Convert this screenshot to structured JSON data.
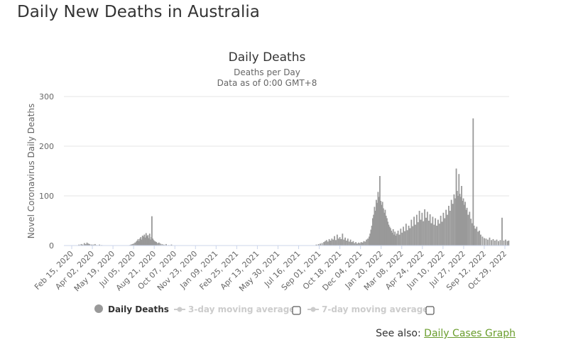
{
  "page": {
    "heading": "Daily New Deaths in Australia",
    "see_also_prefix": "See also:",
    "see_also_link": "Daily Cases Graph"
  },
  "colors": {
    "bar": "#999999",
    "grid": "#e6e6e6",
    "axis": "#ccd6eb",
    "link": "#6a9d2d"
  },
  "chart_data": {
    "type": "bar",
    "title": "Daily Deaths",
    "subtitle_lines": [
      "Deaths per Day",
      "Data as of 0:00 GMT+8"
    ],
    "ylabel": "Novel Coronavirus Daily Deaths",
    "xlabel": "",
    "ylim": [
      0,
      300
    ],
    "y_ticks": [
      0,
      100,
      200,
      300
    ],
    "grid": true,
    "x_start": "2020-02-15",
    "x_end": "2022-11-13",
    "x_ticks": [
      "Feb 15, 2020",
      "Apr 02, 2020",
      "May 19, 2020",
      "Jul 05, 2020",
      "Aug 21, 2020",
      "Oct 07, 2020",
      "Nov 23, 2020",
      "Jan 09, 2021",
      "Feb 25, 2021",
      "Apr 13, 2021",
      "May 30, 2021",
      "Jul 16, 2021",
      "Sep 01, 2021",
      "Oct 18, 2021",
      "Dec 04, 2021",
      "Jan 20, 2022",
      "Mar 08, 2022",
      "Apr 24, 2022",
      "Jun 10, 2022",
      "Jul 27, 2022",
      "Sep 12, 2022",
      "Oct 29, 2022"
    ],
    "legend_position": "bottom",
    "series": [
      {
        "name": "Daily Deaths",
        "points": [
          [
            "2020-03-20",
            2
          ],
          [
            "2020-03-25",
            3
          ],
          [
            "2020-03-28",
            2
          ],
          [
            "2020-04-01",
            5
          ],
          [
            "2020-04-04",
            3
          ],
          [
            "2020-04-07",
            6
          ],
          [
            "2020-04-10",
            4
          ],
          [
            "2020-04-13",
            3
          ],
          [
            "2020-04-17",
            2
          ],
          [
            "2020-04-21",
            2
          ],
          [
            "2020-04-25",
            3
          ],
          [
            "2020-04-29",
            1
          ],
          [
            "2020-05-05",
            2
          ],
          [
            "2020-05-10",
            1
          ],
          [
            "2020-07-12",
            1
          ],
          [
            "2020-07-15",
            2
          ],
          [
            "2020-07-18",
            3
          ],
          [
            "2020-07-21",
            4
          ],
          [
            "2020-07-24",
            6
          ],
          [
            "2020-07-27",
            8
          ],
          [
            "2020-07-29",
            10
          ],
          [
            "2020-07-31",
            13
          ],
          [
            "2020-08-02",
            9
          ],
          [
            "2020-08-04",
            14
          ],
          [
            "2020-08-06",
            17
          ],
          [
            "2020-08-08",
            12
          ],
          [
            "2020-08-10",
            20
          ],
          [
            "2020-08-12",
            18
          ],
          [
            "2020-08-14",
            22
          ],
          [
            "2020-08-16",
            16
          ],
          [
            "2020-08-18",
            25
          ],
          [
            "2020-08-20",
            19
          ],
          [
            "2020-08-22",
            21
          ],
          [
            "2020-08-24",
            15
          ],
          [
            "2020-08-26",
            24
          ],
          [
            "2020-08-28",
            12
          ],
          [
            "2020-08-30",
            17
          ],
          [
            "2020-08-31",
            59
          ],
          [
            "2020-09-02",
            14
          ],
          [
            "2020-09-04",
            11
          ],
          [
            "2020-09-06",
            9
          ],
          [
            "2020-09-08",
            8
          ],
          [
            "2020-09-10",
            7
          ],
          [
            "2020-09-13",
            5
          ],
          [
            "2020-09-16",
            6
          ],
          [
            "2020-09-19",
            4
          ],
          [
            "2020-09-23",
            3
          ],
          [
            "2020-09-27",
            2
          ],
          [
            "2020-10-02",
            3
          ],
          [
            "2020-10-08",
            1
          ],
          [
            "2020-10-14",
            2
          ],
          [
            "2021-09-05",
            2
          ],
          [
            "2021-09-10",
            3
          ],
          [
            "2021-09-14",
            4
          ],
          [
            "2021-09-18",
            5
          ],
          [
            "2021-09-22",
            7
          ],
          [
            "2021-09-25",
            9
          ],
          [
            "2021-09-28",
            11
          ],
          [
            "2021-10-01",
            8
          ],
          [
            "2021-10-04",
            13
          ],
          [
            "2021-10-07",
            10
          ],
          [
            "2021-10-10",
            14
          ],
          [
            "2021-10-13",
            12
          ],
          [
            "2021-10-16",
            19
          ],
          [
            "2021-10-19",
            11
          ],
          [
            "2021-10-22",
            22
          ],
          [
            "2021-10-25",
            14
          ],
          [
            "2021-10-28",
            17
          ],
          [
            "2021-10-31",
            13
          ],
          [
            "2021-11-03",
            24
          ],
          [
            "2021-11-06",
            12
          ],
          [
            "2021-11-09",
            16
          ],
          [
            "2021-11-12",
            10
          ],
          [
            "2021-11-15",
            14
          ],
          [
            "2021-11-18",
            8
          ],
          [
            "2021-11-21",
            12
          ],
          [
            "2021-11-24",
            7
          ],
          [
            "2021-11-27",
            9
          ],
          [
            "2021-11-30",
            5
          ],
          [
            "2021-12-03",
            7
          ],
          [
            "2021-12-06",
            4
          ],
          [
            "2021-12-09",
            6
          ],
          [
            "2021-12-12",
            5
          ],
          [
            "2021-12-15",
            7
          ],
          [
            "2021-12-18",
            6
          ],
          [
            "2021-12-21",
            9
          ],
          [
            "2021-12-24",
            8
          ],
          [
            "2021-12-27",
            12
          ],
          [
            "2021-12-30",
            14
          ],
          [
            "2022-01-02",
            18
          ],
          [
            "2022-01-04",
            24
          ],
          [
            "2022-01-06",
            32
          ],
          [
            "2022-01-08",
            40
          ],
          [
            "2022-01-10",
            55
          ],
          [
            "2022-01-12",
            62
          ],
          [
            "2022-01-14",
            78
          ],
          [
            "2022-01-16",
            70
          ],
          [
            "2022-01-18",
            92
          ],
          [
            "2022-01-20",
            86
          ],
          [
            "2022-01-22",
            108
          ],
          [
            "2022-01-24",
            98
          ],
          [
            "2022-01-26",
            140
          ],
          [
            "2022-01-28",
            90
          ],
          [
            "2022-01-30",
            82
          ],
          [
            "2022-02-01",
            88
          ],
          [
            "2022-02-03",
            75
          ],
          [
            "2022-02-05",
            66
          ],
          [
            "2022-02-07",
            72
          ],
          [
            "2022-02-09",
            60
          ],
          [
            "2022-02-11",
            55
          ],
          [
            "2022-02-13",
            48
          ],
          [
            "2022-02-15",
            42
          ],
          [
            "2022-02-17",
            38
          ],
          [
            "2022-02-19",
            35
          ],
          [
            "2022-02-21",
            30
          ],
          [
            "2022-02-23",
            26
          ],
          [
            "2022-02-25",
            33
          ],
          [
            "2022-02-27",
            22
          ],
          [
            "2022-03-01",
            28
          ],
          [
            "2022-03-03",
            20
          ],
          [
            "2022-03-05",
            24
          ],
          [
            "2022-03-08",
            30
          ],
          [
            "2022-03-11",
            22
          ],
          [
            "2022-03-14",
            34
          ],
          [
            "2022-03-17",
            26
          ],
          [
            "2022-03-20",
            38
          ],
          [
            "2022-03-23",
            29
          ],
          [
            "2022-03-26",
            44
          ],
          [
            "2022-03-29",
            31
          ],
          [
            "2022-04-01",
            40
          ],
          [
            "2022-04-04",
            35
          ],
          [
            "2022-04-07",
            52
          ],
          [
            "2022-04-10",
            39
          ],
          [
            "2022-04-13",
            58
          ],
          [
            "2022-04-16",
            42
          ],
          [
            "2022-04-19",
            62
          ],
          [
            "2022-04-22",
            47
          ],
          [
            "2022-04-25",
            70
          ],
          [
            "2022-04-28",
            52
          ],
          [
            "2022-05-01",
            66
          ],
          [
            "2022-05-04",
            49
          ],
          [
            "2022-05-07",
            73
          ],
          [
            "2022-05-10",
            56
          ],
          [
            "2022-05-13",
            68
          ],
          [
            "2022-05-16",
            50
          ],
          [
            "2022-05-19",
            63
          ],
          [
            "2022-05-22",
            45
          ],
          [
            "2022-05-25",
            58
          ],
          [
            "2022-05-28",
            42
          ],
          [
            "2022-05-31",
            55
          ],
          [
            "2022-06-03",
            40
          ],
          [
            "2022-06-06",
            52
          ],
          [
            "2022-06-09",
            44
          ],
          [
            "2022-06-12",
            60
          ],
          [
            "2022-06-15",
            48
          ],
          [
            "2022-06-18",
            66
          ],
          [
            "2022-06-21",
            55
          ],
          [
            "2022-06-24",
            72
          ],
          [
            "2022-06-27",
            62
          ],
          [
            "2022-06-30",
            80
          ],
          [
            "2022-07-03",
            70
          ],
          [
            "2022-07-06",
            92
          ],
          [
            "2022-07-09",
            84
          ],
          [
            "2022-07-12",
            103
          ],
          [
            "2022-07-15",
            95
          ],
          [
            "2022-07-17",
            155
          ],
          [
            "2022-07-19",
            110
          ],
          [
            "2022-07-21",
            100
          ],
          [
            "2022-07-23",
            144
          ],
          [
            "2022-07-25",
            104
          ],
          [
            "2022-07-27",
            98
          ],
          [
            "2022-07-29",
            120
          ],
          [
            "2022-07-31",
            90
          ],
          [
            "2022-08-02",
            95
          ],
          [
            "2022-08-04",
            82
          ],
          [
            "2022-08-06",
            88
          ],
          [
            "2022-08-08",
            72
          ],
          [
            "2022-08-10",
            76
          ],
          [
            "2022-08-13",
            62
          ],
          [
            "2022-08-16",
            68
          ],
          [
            "2022-08-19",
            54
          ],
          [
            "2022-08-22",
            45
          ],
          [
            "2022-08-24",
            256
          ],
          [
            "2022-08-26",
            40
          ],
          [
            "2022-08-29",
            34
          ],
          [
            "2022-09-01",
            38
          ],
          [
            "2022-09-04",
            28
          ],
          [
            "2022-09-07",
            30
          ],
          [
            "2022-09-10",
            22
          ],
          [
            "2022-09-14",
            18
          ],
          [
            "2022-09-18",
            15
          ],
          [
            "2022-09-22",
            14
          ],
          [
            "2022-09-26",
            12
          ],
          [
            "2022-09-30",
            16
          ],
          [
            "2022-10-04",
            11
          ],
          [
            "2022-10-08",
            13
          ],
          [
            "2022-10-12",
            10
          ],
          [
            "2022-10-16",
            12
          ],
          [
            "2022-10-20",
            9
          ],
          [
            "2022-10-24",
            11
          ],
          [
            "2022-10-28",
            56
          ],
          [
            "2022-11-01",
            10
          ],
          [
            "2022-11-05",
            12
          ],
          [
            "2022-11-09",
            9
          ],
          [
            "2022-11-12",
            10
          ]
        ]
      }
    ]
  },
  "legend": {
    "items": [
      {
        "label": "Daily Deaths"
      },
      {
        "label": "3-day moving average"
      },
      {
        "label": "7-day moving average"
      }
    ]
  }
}
